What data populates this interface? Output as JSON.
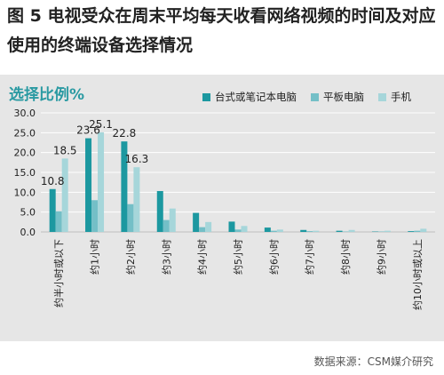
{
  "figure": {
    "title": "图 5 电视受众在周末平均每天收看网络视频的时间及对应使用的终端设备选择情况",
    "source": "数据来源：CSM媒介研究"
  },
  "chart_data": {
    "type": "bar",
    "title": "选择比例%",
    "categories": [
      "约半小时或以下",
      "约1小时",
      "约2小时",
      "约3小时",
      "约4小时",
      "约5小时",
      "约6小时",
      "约7小时",
      "约8小时",
      "约9小时",
      "约10小时或以上"
    ],
    "series": [
      {
        "name": "台式或笔记本电脑",
        "color": "#1c98a0",
        "values": [
          10.8,
          23.6,
          22.8,
          10.3,
          4.8,
          2.6,
          1.1,
          0.5,
          0.3,
          0.1,
          0.2
        ]
      },
      {
        "name": "平板电脑",
        "color": "#74bfc7",
        "values": [
          5.2,
          8.0,
          7.0,
          3.0,
          1.2,
          0.6,
          0.3,
          0.2,
          0.1,
          0.1,
          0.3
        ]
      },
      {
        "name": "手机",
        "color": "#a6d6da",
        "values": [
          18.5,
          25.1,
          16.3,
          5.9,
          2.5,
          1.5,
          0.6,
          0.3,
          0.5,
          0.3,
          0.8
        ]
      }
    ],
    "data_labels": [
      {
        "category_index": 0,
        "text": "10.8",
        "value": 10.8
      },
      {
        "category_index": 0,
        "text": "18.5",
        "value": 18.5
      },
      {
        "category_index": 1,
        "text": "23.6",
        "value": 23.6
      },
      {
        "category_index": 1,
        "text": "25.1",
        "value": 25.1
      },
      {
        "category_index": 2,
        "text": "22.8",
        "value": 22.8
      },
      {
        "category_index": 2,
        "text": "16.3",
        "value": 16.3
      }
    ],
    "yticks": [
      "0.0",
      "5.0",
      "10.0",
      "15.0",
      "20.0",
      "25.0",
      "30.0"
    ],
    "ylim": [
      0,
      30
    ],
    "grid": true,
    "legend_position": "top"
  }
}
